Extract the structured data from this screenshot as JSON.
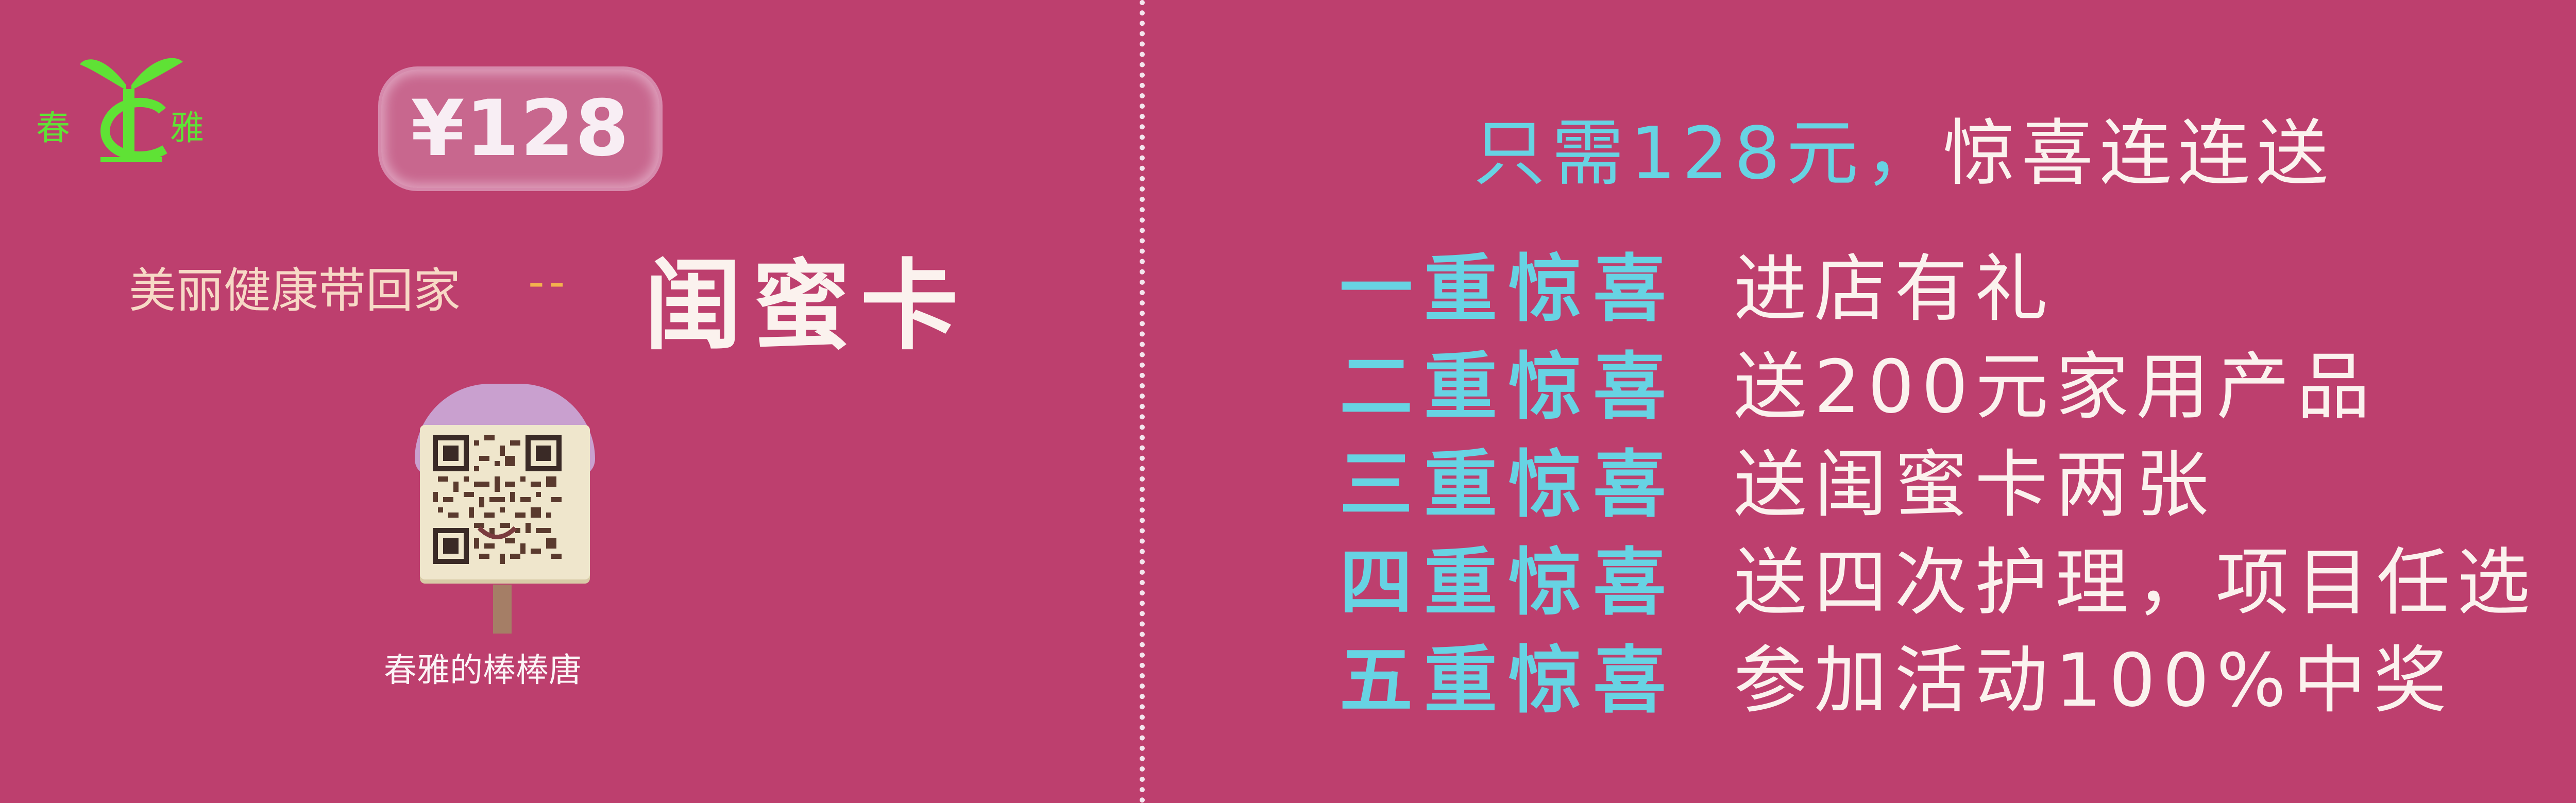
{
  "logo": {
    "left_char": "春",
    "right_char": "雅",
    "icon": "sprout-leaf-icon",
    "color": "#5fe235"
  },
  "price_badge": "¥128",
  "slogan": "美丽健康带回家",
  "slogan_separator": "--",
  "card_name": "闺蜜卡",
  "qr": {
    "icon": "qr-code-icon",
    "caption": "春雅的棒棒唐"
  },
  "headline": {
    "part1": "只需128元，",
    "part2": "惊喜连连送"
  },
  "surprises": [
    {
      "level": "一重惊喜",
      "prize": "进店有礼"
    },
    {
      "level": "二重惊喜",
      "prize": "送200元家用产品"
    },
    {
      "level": "三重惊喜",
      "prize": "送闺蜜卡两张"
    },
    {
      "level": "四重惊喜",
      "prize": "送四次护理，项目任选"
    },
    {
      "level": "五重惊喜",
      "prize": "参加活动100%中奖"
    }
  ],
  "colors": {
    "background": "#bd3f6e",
    "accent_cyan": "#67d3e3",
    "text_light": "#fbf2ee",
    "dash_orange": "#f4b24d"
  }
}
